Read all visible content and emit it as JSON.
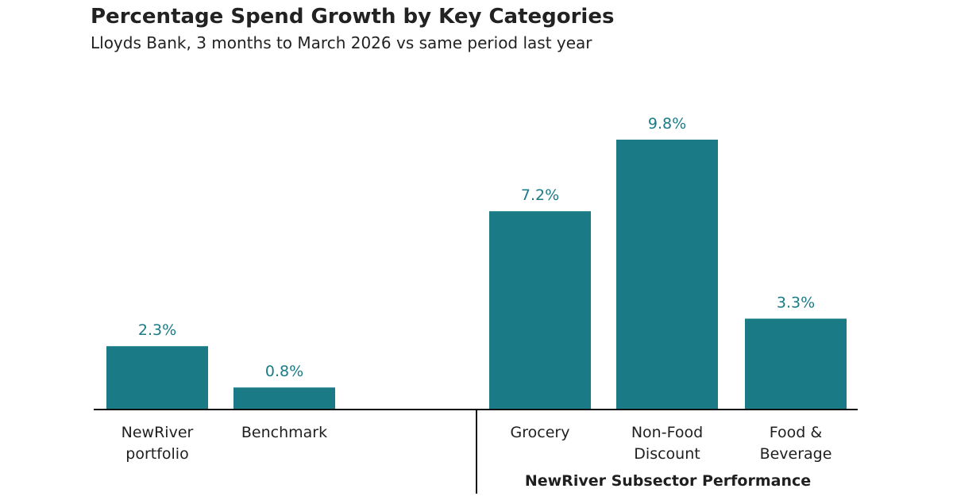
{
  "title": "Percentage Spend Growth by Key Categories",
  "subtitle": "Lloyds Bank, 3 months to March 2026 vs same period last year",
  "chart_data": {
    "type": "bar",
    "title": "Percentage Spend Growth by Key Categories",
    "subtitle": "Lloyds Bank, 3 months to March 2026 vs same period last year",
    "categories": [
      [
        "NewRiver",
        "portfolio"
      ],
      [
        "Benchmark"
      ],
      [
        "Grocery"
      ],
      [
        "Non-Food",
        "Discount"
      ],
      [
        "Food &",
        "Beverage"
      ]
    ],
    "values": [
      2.3,
      0.8,
      7.2,
      9.8,
      3.3
    ],
    "value_labels": [
      "2.3%",
      "0.8%",
      "7.2%",
      "9.8%",
      "3.3%"
    ],
    "groups": [
      {
        "label": "",
        "category_indices": [
          0,
          1
        ]
      },
      {
        "label": "NewRiver Subsector Performance",
        "category_indices": [
          2,
          3,
          4
        ]
      }
    ],
    "bar_color": "#1a7b87",
    "label_color": "#1a7b87",
    "axis_color": "#111111",
    "ylim": [
      0,
      10
    ],
    "grid": false,
    "legend": false
  }
}
